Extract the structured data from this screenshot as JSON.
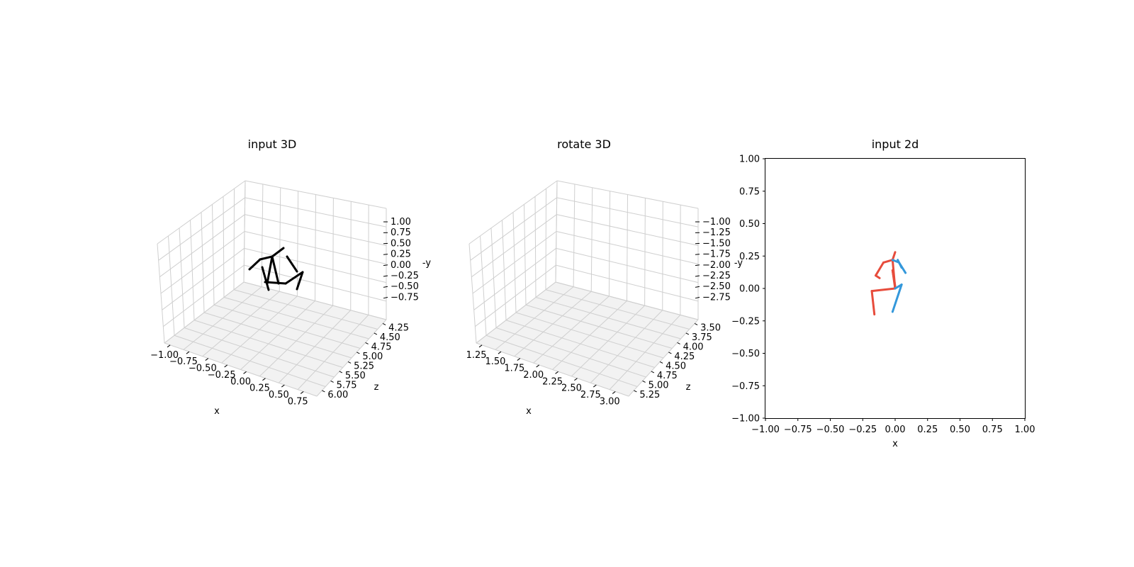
{
  "chart_data": [
    {
      "type": "line3d",
      "title": "input 3D",
      "xlabel": "x",
      "ylabel": "-y",
      "zlabel": "z",
      "xticks": [
        "−1.00",
        "−0.75",
        "−0.50",
        "−0.25",
        "0.00",
        "0.25",
        "0.50",
        "0.75"
      ],
      "zticks": [
        "4.25",
        "4.50",
        "4.75",
        "5.00",
        "5.25",
        "5.50",
        "5.75",
        "6.00"
      ],
      "yticks": [
        "1.00",
        "0.75",
        "0.50",
        "0.25",
        "0.00",
        "−0.25",
        "−0.50",
        "−0.75"
      ],
      "grid": true,
      "color": "#000000",
      "segments_screen_note": "skeleton drawn as 3D line segments"
    },
    {
      "type": "line3d",
      "title": "rotate 3D",
      "xlabel": "x",
      "ylabel": "-y",
      "zlabel": "z",
      "xticks": [
        "1.25",
        "1.50",
        "1.75",
        "2.00",
        "2.25",
        "2.50",
        "2.75",
        "3.00"
      ],
      "zticks": [
        "3.50",
        "3.75",
        "4.00",
        "4.25",
        "4.50",
        "4.75",
        "5.00",
        "5.25"
      ],
      "yticks": [
        "−1.00",
        "−1.25",
        "−1.50",
        "−1.75",
        "−2.00",
        "−2.25",
        "−2.50",
        "−2.75"
      ],
      "grid": true,
      "color": "#ff0000"
    },
    {
      "type": "line",
      "title": "input 2d",
      "xlabel": "x",
      "ylabel": "",
      "xlim": [
        -1.0,
        1.0
      ],
      "ylim": [
        -1.0,
        1.0
      ],
      "xticks": [
        "−1.00",
        "−0.75",
        "−0.50",
        "−0.25",
        "0.00",
        "0.25",
        "0.50",
        "0.75",
        "1.00"
      ],
      "yticks": [
        "1.00",
        "0.75",
        "0.50",
        "0.25",
        "0.00",
        "−0.25",
        "−0.50",
        "−0.75",
        "−1.00"
      ],
      "grid": false,
      "series": [
        {
          "color": "#e74c3c",
          "segments": [
            [
              [
                0.0,
                0.0
              ],
              [
                -0.02,
                0.22
              ]
            ],
            [
              [
                -0.02,
                0.22
              ],
              [
                0.0,
                0.28
              ]
            ],
            [
              [
                -0.02,
                0.22
              ],
              [
                -0.09,
                0.2
              ]
            ],
            [
              [
                -0.09,
                0.2
              ],
              [
                -0.15,
                0.1
              ]
            ],
            [
              [
                -0.15,
                0.1
              ],
              [
                -0.12,
                0.08
              ]
            ],
            [
              [
                0.0,
                0.0
              ],
              [
                -0.02,
                0.14
              ]
            ],
            [
              [
                -0.02,
                0.14
              ],
              [
                0.0,
                0.02
              ]
            ],
            [
              [
                0.0,
                0.0
              ],
              [
                -0.18,
                -0.02
              ]
            ],
            [
              [
                -0.18,
                -0.02
              ],
              [
                -0.16,
                -0.2
              ]
            ]
          ]
        },
        {
          "color": "#3498db",
          "segments": [
            [
              [
                -0.02,
                0.22
              ],
              [
                0.03,
                0.2
              ]
            ],
            [
              [
                0.03,
                0.2
              ],
              [
                0.08,
                0.12
              ]
            ],
            [
              [
                0.02,
                0.22
              ],
              [
                0.05,
                0.16
              ]
            ],
            [
              [
                0.0,
                0.0
              ],
              [
                0.05,
                0.03
              ]
            ],
            [
              [
                0.05,
                0.03
              ],
              [
                -0.02,
                -0.18
              ]
            ]
          ]
        }
      ]
    }
  ]
}
